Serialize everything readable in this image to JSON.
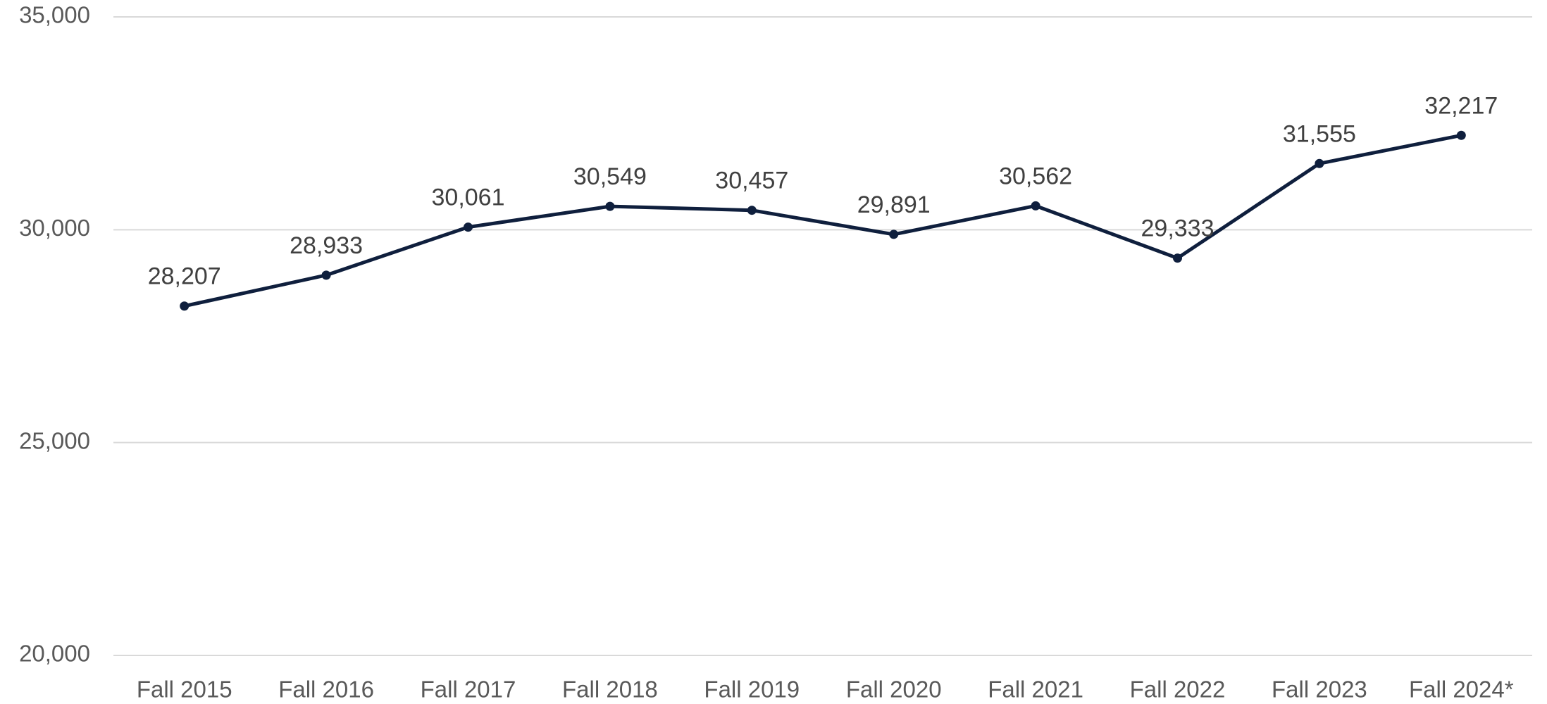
{
  "chart_data": {
    "type": "line",
    "categories": [
      "Fall 2015",
      "Fall 2016",
      "Fall 2017",
      "Fall 2018",
      "Fall 2019",
      "Fall 2020",
      "Fall 2021",
      "Fall 2022",
      "Fall 2023",
      "Fall 2024*"
    ],
    "series": [
      {
        "color": "#0f1f3d",
        "values": [
          28207,
          28933,
          30061,
          30549,
          30457,
          29891,
          30562,
          29333,
          31555,
          32217
        ],
        "value_labels": [
          "28,207",
          "28,933",
          "30,061",
          "30,549",
          "30,457",
          "29,891",
          "30,562",
          "29,333",
          "31,555",
          "32,217"
        ]
      }
    ],
    "ylim": [
      20000,
      35000
    ],
    "yticks": [
      {
        "value": 20000,
        "label": "20,000"
      },
      {
        "value": 25000,
        "label": "25,000"
      },
      {
        "value": 30000,
        "label": "30,000"
      },
      {
        "value": 35000,
        "label": "35,000"
      }
    ],
    "grid": true
  }
}
